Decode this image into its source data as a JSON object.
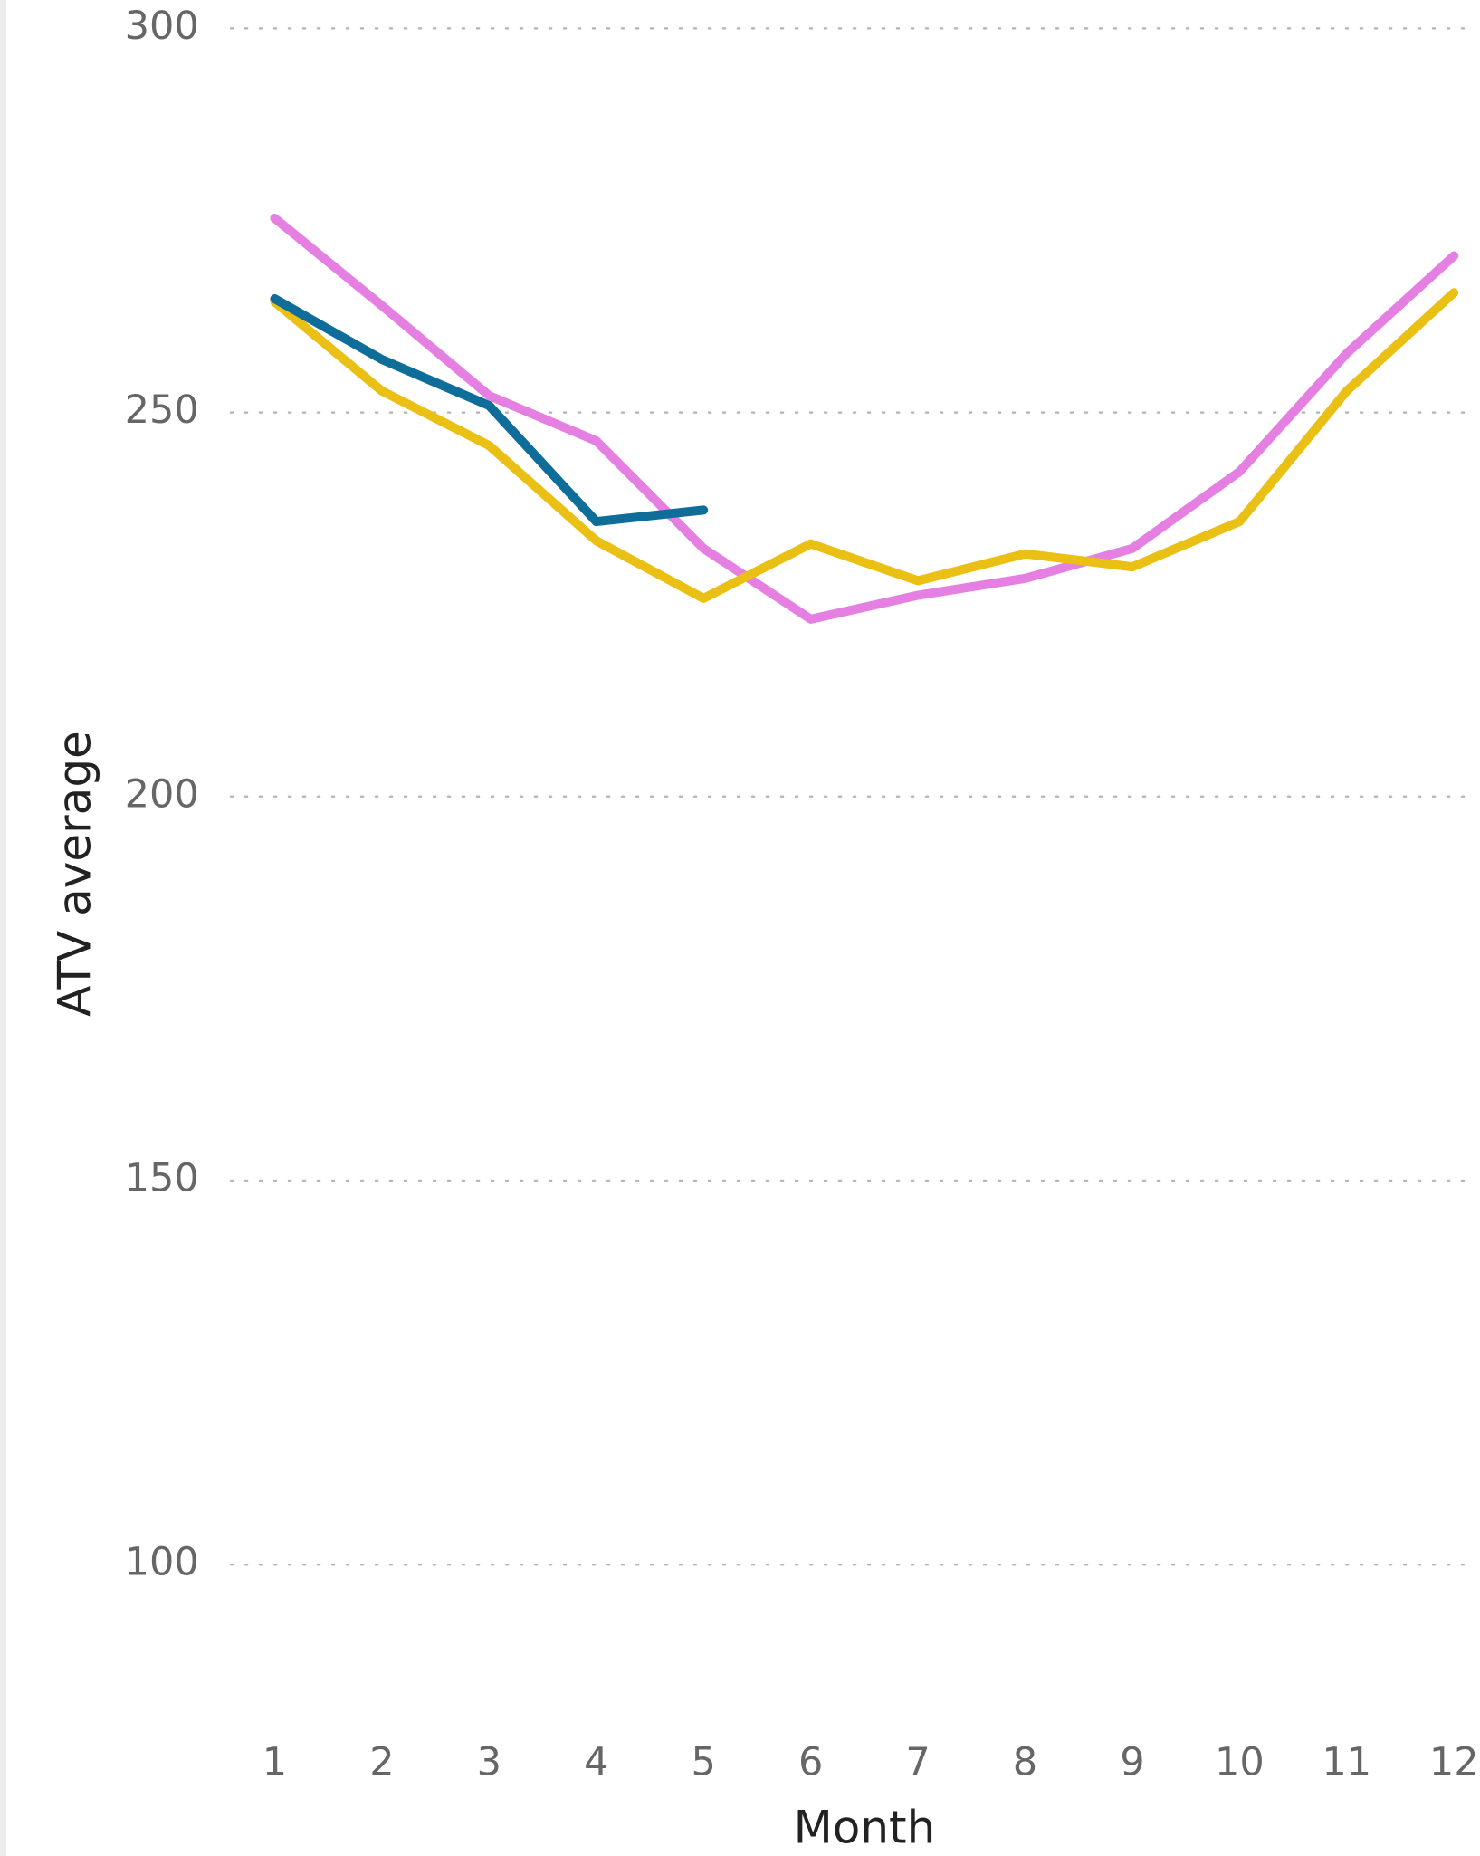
{
  "chart_data": {
    "type": "line",
    "x_label": "Month",
    "y_label": "ATV average",
    "x": [
      1,
      2,
      3,
      4,
      5,
      6,
      7,
      8,
      9,
      10,
      11,
      12
    ],
    "xlim": [
      1,
      12
    ],
    "xticks": [
      1,
      2,
      3,
      4,
      5,
      6,
      7,
      8,
      9,
      10,
      11,
      12
    ],
    "ylim": [
      80,
      300
    ],
    "yticks": [
      100,
      150,
      200,
      250,
      300
    ],
    "grid": true,
    "series": [
      {
        "color": "#e57fe2",
        "values": [
          275.3,
          263.9,
          252.2,
          246.3,
          232.3,
          223.1,
          226.2,
          228.4,
          232.3,
          242.3,
          257.7,
          270.4
        ]
      },
      {
        "color": "#e9c013",
        "values": [
          264.4,
          252.8,
          245.7,
          233.3,
          225.8,
          232.9,
          228.1,
          231.6,
          229.9,
          235.8,
          252.8,
          265.6
        ]
      },
      {
        "color": "#0f6e99",
        "values": [
          264.8,
          256.9,
          250.9,
          235.8,
          237.3,
          null,
          null,
          null,
          null,
          null,
          null,
          null
        ]
      }
    ]
  }
}
